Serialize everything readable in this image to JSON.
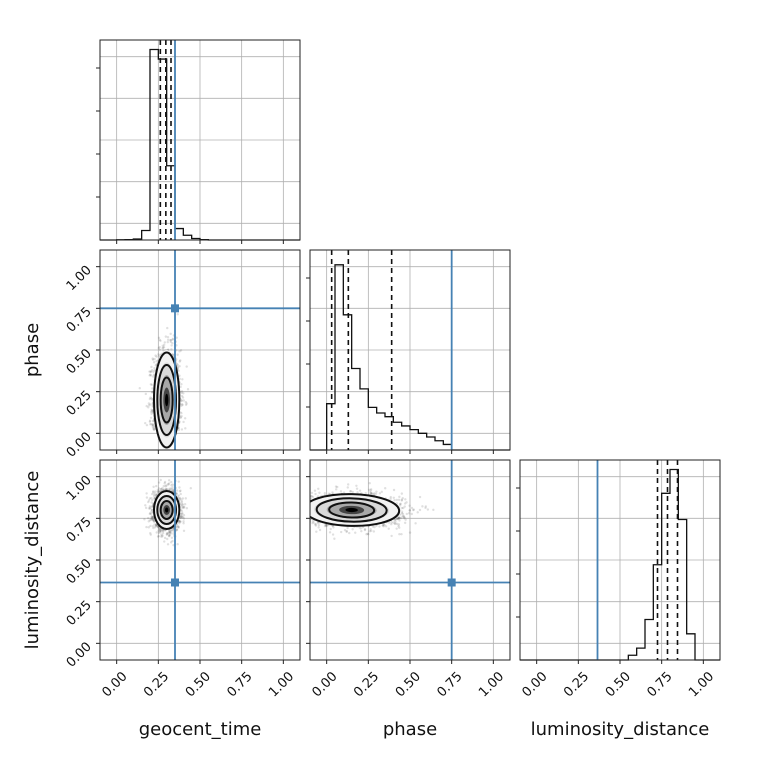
{
  "chart_data": {
    "type": "corner",
    "parameters": [
      "geocent_time",
      "phase",
      "luminosity_distance"
    ],
    "axis_range": [
      -0.1,
      1.1
    ],
    "ticks": [
      0.0,
      0.25,
      0.5,
      0.75,
      1.0
    ],
    "tick_labels": [
      "0.00",
      "0.25",
      "0.50",
      "0.75",
      "1.00"
    ],
    "grid": true,
    "truths": {
      "geocent_time": 0.35,
      "phase": 0.75,
      "luminosity_distance": 0.365
    },
    "quantiles": {
      "geocent_time": [
        0.262,
        0.295,
        0.326
      ],
      "phase": [
        0.03,
        0.13,
        0.39
      ],
      "luminosity_distance": [
        0.725,
        0.785,
        0.845
      ]
    },
    "histograms": {
      "geocent_time": {
        "edges": [
          -0.1,
          -0.05,
          0.0,
          0.05,
          0.1,
          0.15,
          0.2,
          0.25,
          0.3,
          0.35,
          0.4,
          0.45,
          0.5,
          0.55,
          0.6,
          0.65,
          0.7,
          0.75,
          0.8,
          0.85,
          0.9,
          0.95,
          1.0,
          1.05,
          1.1
        ],
        "counts": [
          0,
          0,
          1,
          2,
          5,
          50,
          1000,
          950,
          390,
          60,
          25,
          8,
          2,
          0,
          0,
          0,
          0,
          0,
          0,
          0,
          0,
          0,
          0,
          0
        ],
        "ymax": 1050
      },
      "phase": {
        "edges": [
          -0.1,
          -0.05,
          0.0,
          0.05,
          0.1,
          0.15,
          0.2,
          0.25,
          0.3,
          0.35,
          0.4,
          0.45,
          0.5,
          0.55,
          0.6,
          0.65,
          0.7,
          0.75,
          0.8,
          0.85,
          0.9,
          0.95,
          1.0,
          1.05,
          1.1
        ],
        "counts": [
          0,
          0,
          25,
          100,
          73,
          44,
          33,
          23,
          20,
          18,
          15,
          13,
          11,
          9,
          7,
          5,
          3,
          0,
          0,
          0,
          0,
          0,
          0,
          0
        ],
        "ymax": 108
      },
      "luminosity_distance": {
        "edges": [
          -0.1,
          -0.05,
          0.0,
          0.05,
          0.1,
          0.15,
          0.2,
          0.25,
          0.3,
          0.35,
          0.4,
          0.45,
          0.5,
          0.55,
          0.6,
          0.65,
          0.7,
          0.75,
          0.8,
          0.85,
          0.9,
          0.95,
          1.0,
          1.05,
          1.1
        ],
        "counts": [
          0,
          0,
          0,
          0,
          0,
          0,
          0,
          0,
          0,
          0,
          0,
          0,
          0,
          2,
          5,
          17,
          40,
          70,
          80,
          59,
          11,
          0,
          0,
          0
        ],
        "ymax": 84
      }
    },
    "density_blobs": [
      {
        "x": "geocent_time",
        "y": "phase",
        "cx": 0.3,
        "cy": 0.2,
        "sx": 0.04,
        "sy": 0.15,
        "rho": 0.0
      },
      {
        "x": "geocent_time",
        "y": "luminosity_distance",
        "cx": 0.3,
        "cy": 0.8,
        "sx": 0.04,
        "sy": 0.06,
        "rho": 0.0
      },
      {
        "x": "phase",
        "y": "luminosity_distance",
        "cx": 0.15,
        "cy": 0.8,
        "sx": 0.15,
        "sy": 0.05,
        "rho": -0.1
      }
    ]
  }
}
